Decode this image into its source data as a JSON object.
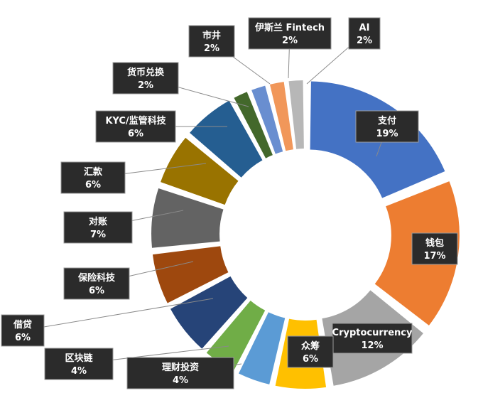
{
  "chart_data": {
    "type": "pie",
    "variant": "exploded-donut",
    "title": "",
    "slices": [
      {
        "label": "支付",
        "value": 19,
        "value_label": "19%",
        "color": "#4472c4"
      },
      {
        "label": "钱包",
        "value": 17,
        "value_label": "17%",
        "color": "#ed7d31"
      },
      {
        "label": "Cryptocurrency",
        "value": 12,
        "value_label": "12%",
        "color": "#a5a5a5"
      },
      {
        "label": "众筹",
        "value": 6,
        "value_label": "6%",
        "color": "#ffc000"
      },
      {
        "label": "理财投资",
        "value": 4,
        "value_label": "4%",
        "color": "#5b9bd5"
      },
      {
        "label": "区块链",
        "value": 4,
        "value_label": "4%",
        "color": "#70ad47"
      },
      {
        "label": "借贷",
        "value": 6,
        "value_label": "6%",
        "color": "#264478"
      },
      {
        "label": "保险科技",
        "value": 6,
        "value_label": "6%",
        "color": "#9e480e"
      },
      {
        "label": "对账",
        "value": 7,
        "value_label": "7%",
        "color": "#636363"
      },
      {
        "label": "汇款",
        "value": 6,
        "value_label": "6%",
        "color": "#997300"
      },
      {
        "label": "KYC/监管科技",
        "value": 6,
        "value_label": "6%",
        "color": "#255e91"
      },
      {
        "label": "货币兑换",
        "value": 2,
        "value_label": "2%",
        "color": "#43682b"
      },
      {
        "label": "市井",
        "value": 2,
        "value_label": "2%",
        "color": "#698ed0"
      },
      {
        "label": "伊斯兰 Fintech",
        "value": 2,
        "value_label": "2%",
        "color": "#f1975a"
      },
      {
        "label": "AI",
        "value": 2,
        "value_label": "2%",
        "color": "#b7b7b7"
      }
    ]
  }
}
